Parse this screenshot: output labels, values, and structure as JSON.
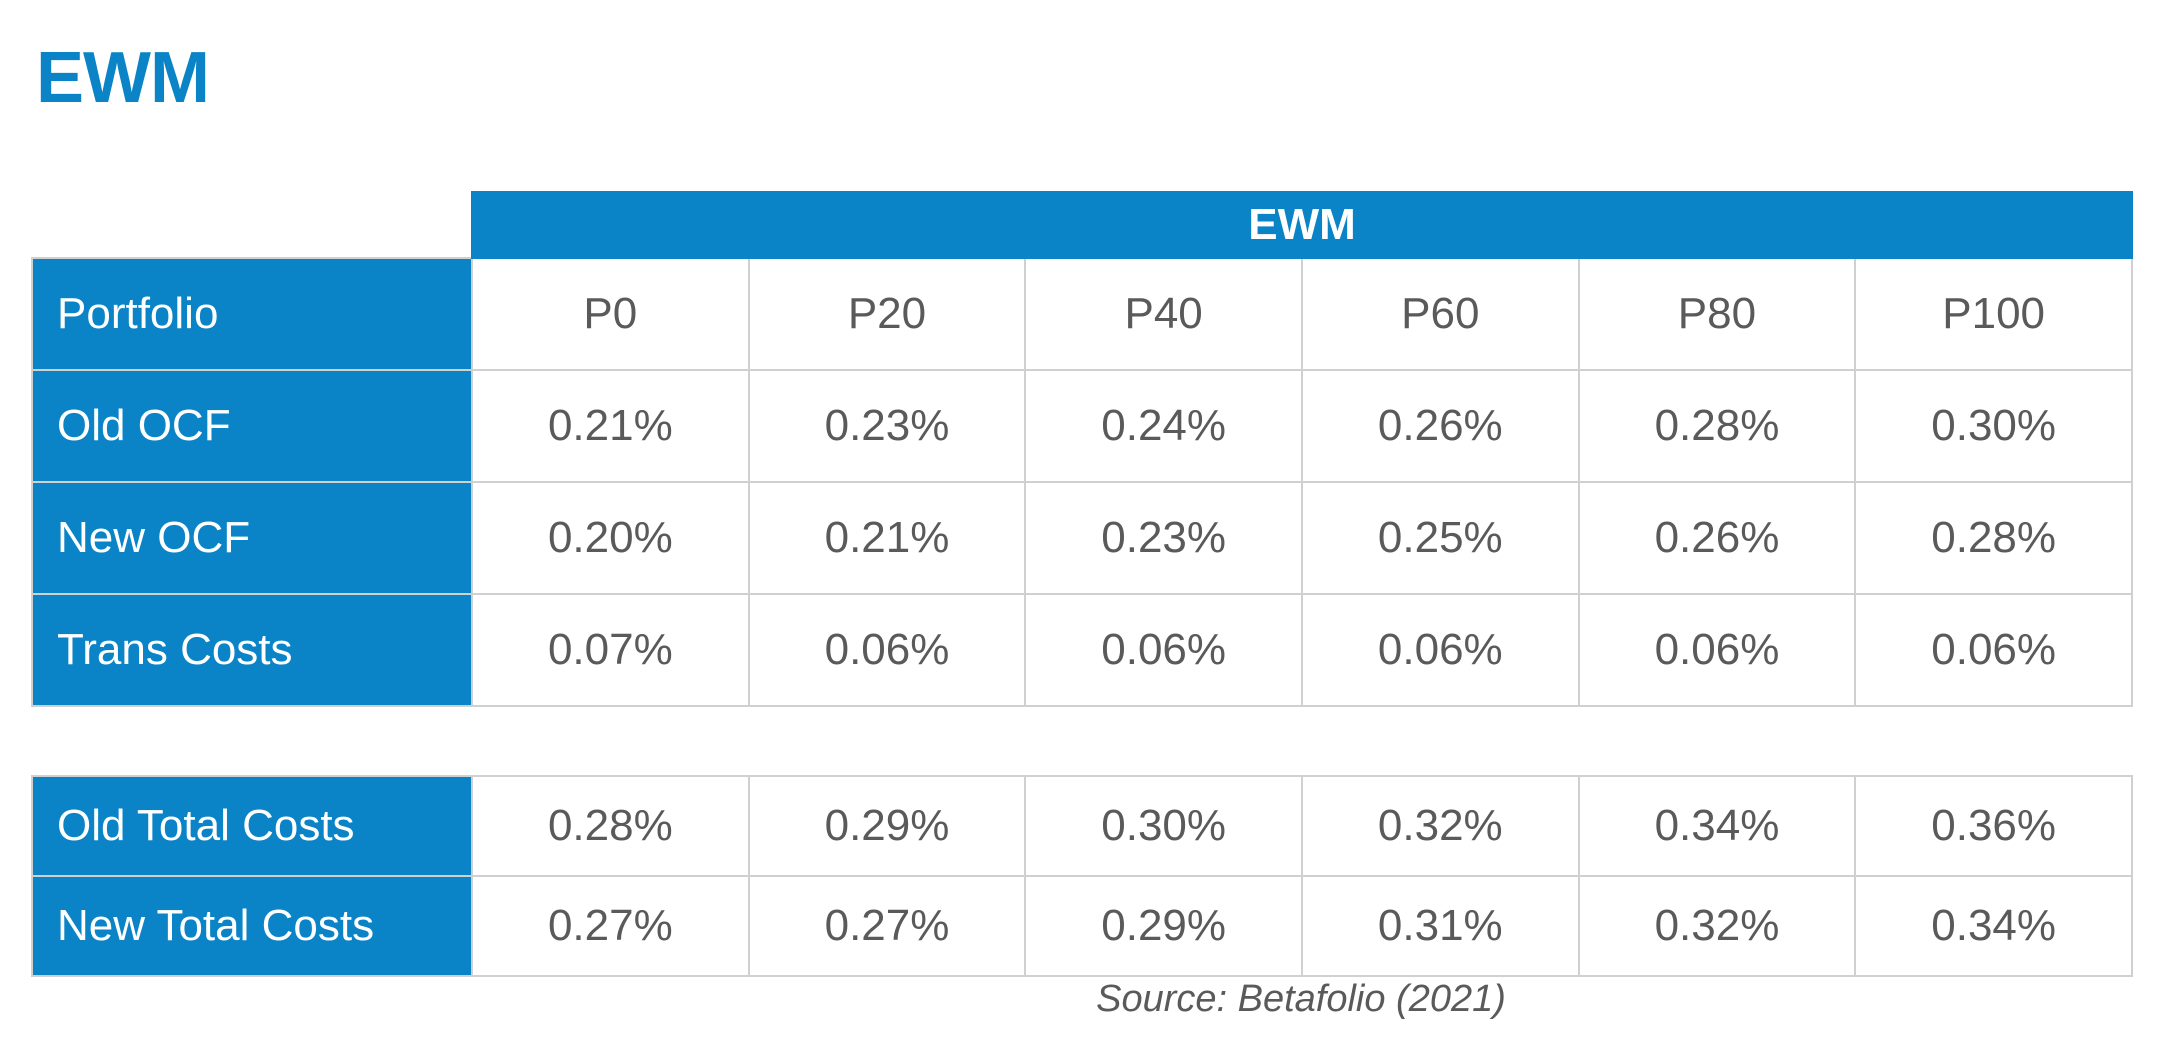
{
  "page": {
    "title": "EWM",
    "source": "Source: Betafolio (2021)"
  },
  "table": {
    "group_header": "EWM",
    "header_label": "Portfolio",
    "columns": [
      "P0",
      "P20",
      "P40",
      "P60",
      "P80",
      "P100"
    ],
    "rows": [
      {
        "label": "Old OCF",
        "values": [
          "0.21%",
          "0.23%",
          "0.24%",
          "0.26%",
          "0.28%",
          "0.30%"
        ]
      },
      {
        "label": "New OCF",
        "values": [
          "0.20%",
          "0.21%",
          "0.23%",
          "0.25%",
          "0.26%",
          "0.28%"
        ]
      },
      {
        "label": "Trans Costs",
        "values": [
          "0.07%",
          "0.06%",
          "0.06%",
          "0.06%",
          "0.06%",
          "0.06%"
        ]
      }
    ]
  },
  "totals": {
    "rows": [
      {
        "label": "Old Total Costs",
        "values": [
          "0.28%",
          "0.29%",
          "0.30%",
          "0.32%",
          "0.34%",
          "0.36%"
        ]
      },
      {
        "label": "New Total Costs",
        "values": [
          "0.27%",
          "0.27%",
          "0.29%",
          "0.31%",
          "0.32%",
          "0.34%"
        ]
      }
    ]
  },
  "colors": {
    "accent": "#0a84c6",
    "text": "#5a5a5a",
    "border": "#d0d0d0"
  }
}
